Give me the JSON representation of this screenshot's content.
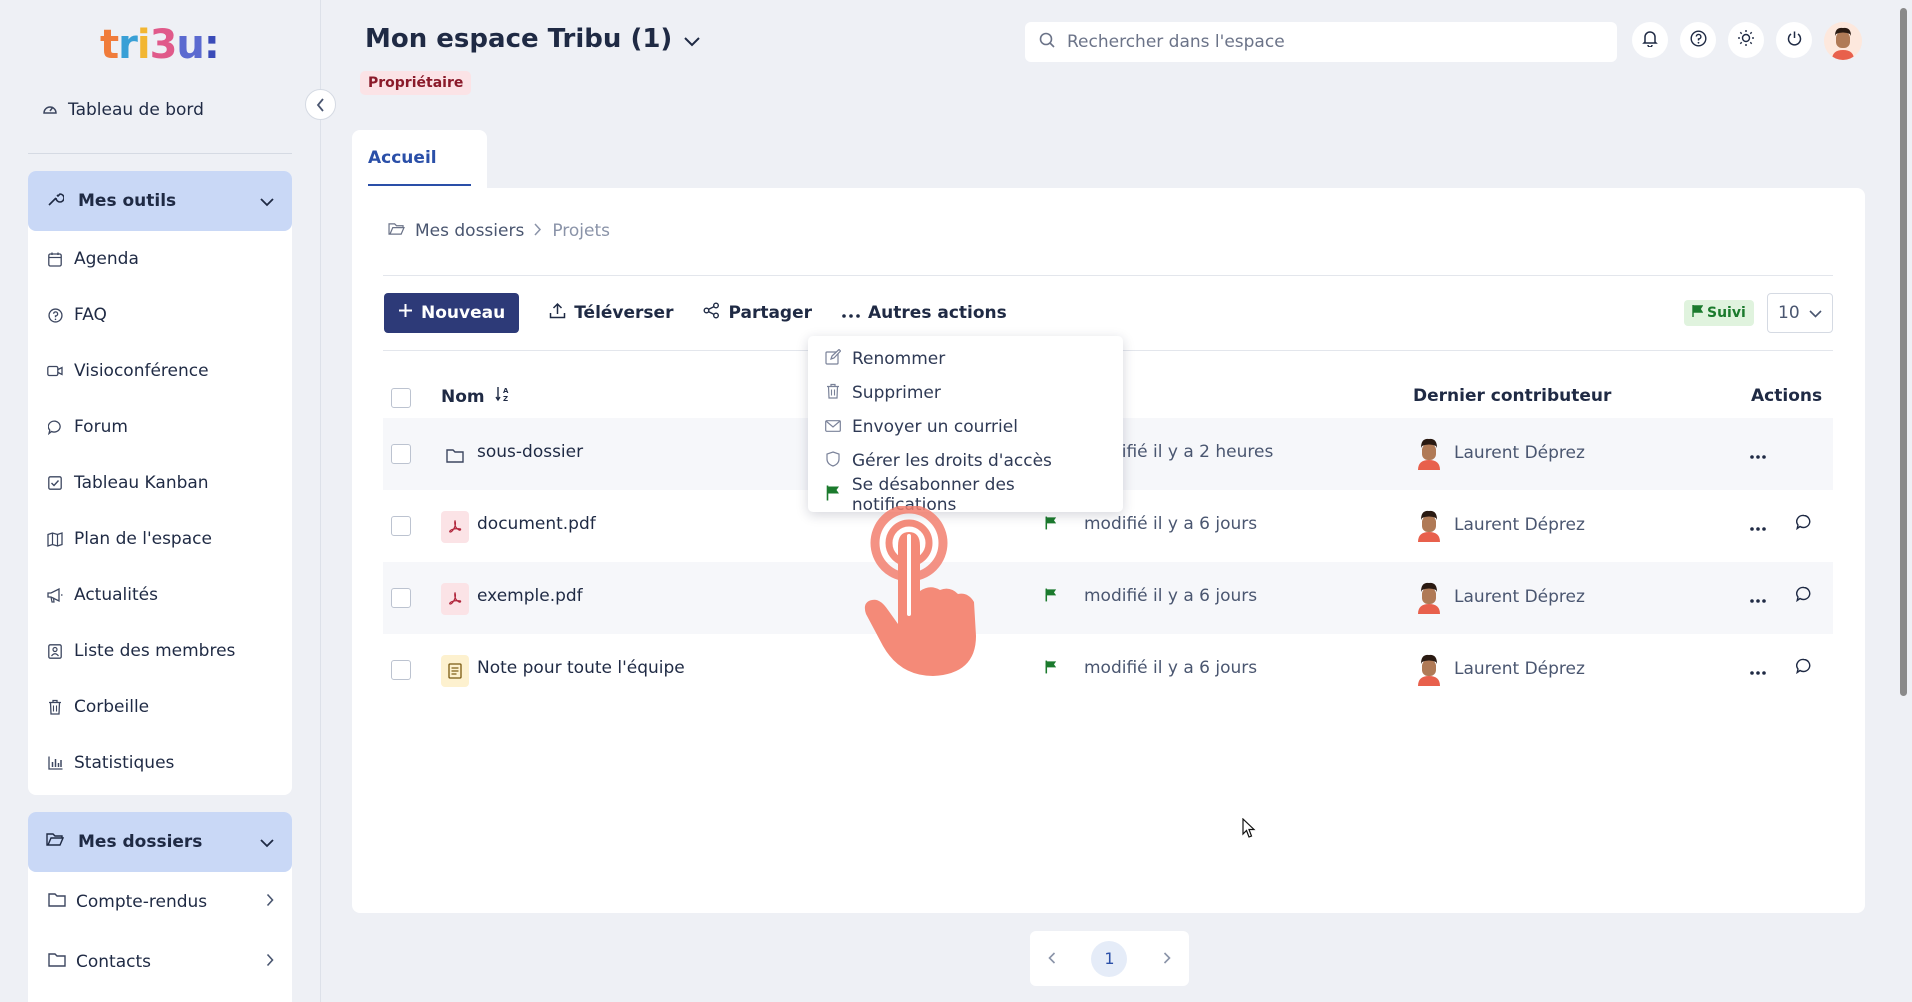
{
  "sidebar": {
    "logo_text": "tribu:",
    "dashboard_label": "Tableau de bord",
    "tools_title": "Mes outils",
    "tools": [
      {
        "label": "Agenda",
        "icon": "calendar-icon"
      },
      {
        "label": "FAQ",
        "icon": "help-icon"
      },
      {
        "label": "Visioconférence",
        "icon": "video-icon"
      },
      {
        "label": "Forum",
        "icon": "forum-icon"
      },
      {
        "label": "Tableau Kanban",
        "icon": "kanban-icon"
      },
      {
        "label": "Plan de l'espace",
        "icon": "map-icon"
      },
      {
        "label": "Actualités",
        "icon": "megaphone-icon"
      },
      {
        "label": "Liste des membres",
        "icon": "members-icon"
      },
      {
        "label": "Corbeille",
        "icon": "trash-icon"
      },
      {
        "label": "Statistiques",
        "icon": "stats-icon"
      }
    ],
    "folders_title": "Mes dossiers",
    "folders": [
      {
        "label": "Compte-rendus"
      },
      {
        "label": "Contacts"
      }
    ]
  },
  "header": {
    "space_title": "Mon espace Tribu (1)",
    "role_badge": "Propriétaire",
    "search_placeholder": "Rechercher dans l'espace"
  },
  "tabs": [
    {
      "label": "Accueil",
      "active": true
    }
  ],
  "breadcrumb": {
    "root": "Mes dossiers",
    "current": "Projets"
  },
  "toolbar": {
    "new_label": "Nouveau",
    "upload_label": "Téléverser",
    "share_label": "Partager",
    "more_label": "Autres actions",
    "follow_badge": "Suivi",
    "page_size": "10"
  },
  "table": {
    "col_name": "Nom",
    "col_contributor": "Dernier contributeur",
    "col_actions": "Actions",
    "rows": [
      {
        "name": "sous-dossier",
        "type": "folder",
        "modified": "modifié il y a 2 heures",
        "contributor": "Laurent Déprez",
        "followed": false
      },
      {
        "name": "document.pdf",
        "type": "pdf",
        "modified": "modifié il y a 6 jours",
        "contributor": "Laurent Déprez",
        "followed": true
      },
      {
        "name": "exemple.pdf",
        "type": "pdf",
        "modified": "modifié il y a 6 jours",
        "contributor": "Laurent Déprez",
        "followed": true
      },
      {
        "name": "Note pour toute l'équipe",
        "type": "note",
        "modified": "modifié il y a 6 jours",
        "contributor": "Laurent Déprez",
        "followed": true
      }
    ]
  },
  "dropdown": {
    "items": [
      {
        "label": "Renommer",
        "icon": "edit-icon"
      },
      {
        "label": "Supprimer",
        "icon": "trash-icon"
      },
      {
        "label": "Envoyer un courriel",
        "icon": "mail-icon"
      },
      {
        "label": "Gérer les droits d'accès",
        "icon": "shield-icon"
      },
      {
        "label": "Se désabonner des notifications",
        "icon": "flag-icon"
      }
    ]
  },
  "pagination": {
    "current": "1"
  },
  "colors": {
    "accent": "#2d3a78",
    "link": "#2a4fa8",
    "follow_green": "#1b7a2d",
    "panel_head": "#c9d8f6"
  }
}
